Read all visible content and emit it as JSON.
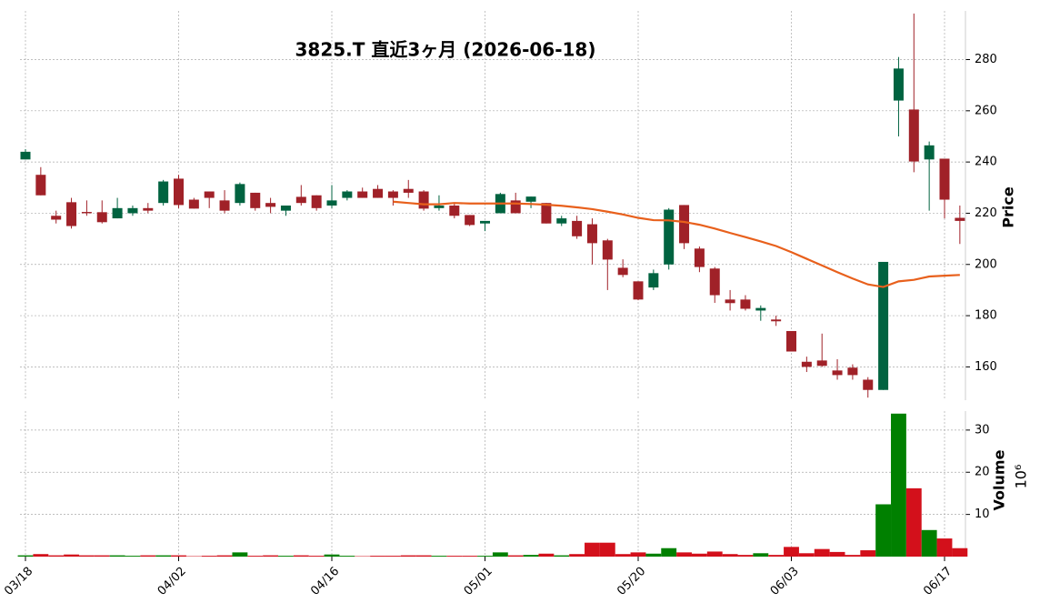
{
  "chart_data": [
    {
      "type": "candlestick",
      "title": "3825.T  直近3ヶ月  (2026-06-18)",
      "y_label": "Price",
      "up_color": "#006340",
      "down_color": "#a02128",
      "open": [
        241,
        235,
        219,
        224.3,
        220.5,
        220.4,
        218,
        220,
        222,
        224,
        233.5,
        225.3,
        228.5,
        225,
        224,
        228,
        224,
        221,
        226.4,
        227,
        223,
        226,
        228.5,
        229.5,
        228.5,
        229.5,
        228.5,
        222,
        223,
        219.3,
        216,
        220,
        225,
        224.5,
        224,
        216,
        217,
        215.7,
        209.4,
        198.7,
        193.4,
        191,
        200,
        223.2,
        206.2,
        198.4,
        186.3,
        186.3,
        182,
        178.5,
        174,
        162,
        162.5,
        158.6,
        159.7,
        155,
        151,
        264,
        260.5,
        241,
        241.3,
        218.2
      ],
      "close": [
        244,
        227,
        217.5,
        215,
        220,
        216.5,
        222,
        222,
        221,
        232.4,
        223.2,
        221.8,
        226,
        221,
        231.4,
        222,
        222.5,
        223,
        224,
        222,
        225,
        228.5,
        226,
        226,
        226,
        228,
        221.8,
        223,
        219,
        215.4,
        217,
        227.5,
        220,
        226.5,
        216,
        218,
        211,
        208.3,
        201.9,
        195.9,
        186.3,
        196.6,
        221.4,
        208.3,
        199,
        188,
        184.9,
        182.7,
        183,
        177.8,
        166,
        160,
        160.4,
        156.8,
        156.8,
        151,
        201,
        276.5,
        240.2,
        246.5,
        225.3,
        217
      ],
      "high": [
        245,
        238,
        221,
        226,
        225,
        225,
        226,
        223,
        224,
        233,
        235,
        226,
        228.5,
        229,
        232,
        228,
        226,
        223,
        231,
        227,
        231,
        229,
        230,
        231,
        229,
        233,
        229,
        227,
        224,
        219.3,
        217,
        228,
        228,
        226.5,
        224,
        219,
        219,
        218,
        210,
        202,
        193.4,
        198,
        222,
        223.2,
        207,
        199,
        190,
        188,
        184,
        180,
        174,
        164,
        173,
        163,
        161,
        156,
        201,
        281,
        298,
        248,
        241.3,
        223
      ],
      "low": [
        241,
        227,
        216,
        214,
        219,
        216,
        218,
        219,
        220,
        223,
        222,
        221.8,
        222,
        220,
        223,
        221,
        220,
        219,
        223,
        221,
        222,
        225,
        226,
        226,
        223,
        226,
        221,
        221,
        218,
        215,
        213,
        220,
        220,
        222,
        216,
        215,
        210,
        200,
        190,
        195,
        186,
        190,
        198,
        206,
        197,
        185,
        182,
        182,
        178,
        176,
        166,
        158,
        160,
        155,
        155,
        148,
        151,
        250,
        236,
        221,
        218,
        208
      ],
      "moving_average": {
        "color": "#e8601c",
        "values": [
          null,
          null,
          null,
          null,
          null,
          null,
          null,
          null,
          null,
          null,
          null,
          null,
          null,
          null,
          null,
          null,
          null,
          null,
          null,
          null,
          null,
          null,
          null,
          null,
          224.5,
          224,
          223.5,
          223.5,
          224,
          223.8,
          223.8,
          223.8,
          223.8,
          223.6,
          223.3,
          222.9,
          222.3,
          221.6,
          220.6,
          219.5,
          218.2,
          217.3,
          217.2,
          216.6,
          215.5,
          214,
          212.3,
          210.7,
          209,
          207.2,
          204.8,
          202.2,
          199.6,
          197,
          194.5,
          192.2,
          191.2,
          193.4,
          194,
          195.3,
          195.6,
          195.9
        ]
      },
      "ylim": [
        147,
        299
      ],
      "yticks": [
        160,
        180,
        200,
        220,
        240,
        260,
        280
      ],
      "grid": true
    },
    {
      "type": "bar",
      "y_label": "Volume",
      "scale_label": "10⁶",
      "up_color": "#008000",
      "down_color": "#d3101b",
      "categories": [
        "03/18",
        null,
        null,
        null,
        null,
        null,
        null,
        null,
        null,
        null,
        "04/02",
        null,
        null,
        null,
        null,
        null,
        null,
        null,
        null,
        null,
        "04/16",
        null,
        null,
        null,
        null,
        null,
        null,
        null,
        null,
        null,
        "05/01",
        null,
        null,
        null,
        null,
        null,
        null,
        null,
        null,
        null,
        "05/20",
        null,
        null,
        null,
        null,
        null,
        null,
        null,
        null,
        null,
        "06/03",
        null,
        null,
        null,
        null,
        null,
        null,
        null,
        null,
        null,
        "06/17",
        null
      ],
      "values": [
        0.3,
        0.6,
        0.3,
        0.5,
        0.3,
        0.3,
        0.3,
        0.2,
        0.3,
        0.3,
        0.3,
        0.1,
        0.2,
        0.3,
        1.0,
        0.2,
        0.3,
        0.2,
        0.3,
        0.2,
        0.5,
        0.2,
        0.1,
        0.2,
        0.2,
        0.3,
        0.3,
        0.2,
        0.2,
        0.2,
        0.2,
        1.0,
        0.3,
        0.4,
        0.7,
        0.3,
        0.6,
        3.3,
        3.3,
        0.6,
        1.0,
        0.7,
        2.0,
        1.0,
        0.7,
        1.2,
        0.6,
        0.4,
        0.8,
        0.4,
        2.3,
        0.8,
        1.8,
        1.1,
        0.4,
        1.5,
        12.4,
        33.9,
        16.2,
        6.3,
        4.3,
        2.0
      ],
      "ylim": [
        0,
        34.5
      ],
      "yticks": [
        10,
        20,
        30
      ],
      "grid": true
    }
  ]
}
